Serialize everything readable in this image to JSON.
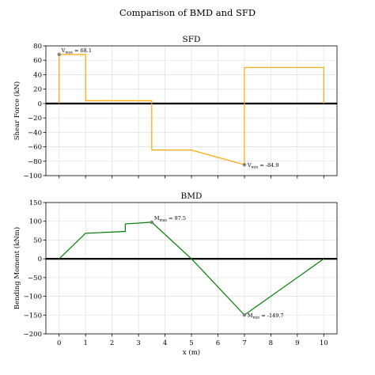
{
  "figure": {
    "suptitle": "Comparison of BMD and SFD"
  },
  "chart_data": [
    {
      "type": "line",
      "title": "SFD",
      "xlabel": "",
      "ylabel": "Shear Force (kN)",
      "xlim": [
        -0.5,
        10.5
      ],
      "ylim": [
        -100,
        80
      ],
      "xticks": [
        0,
        1,
        2,
        3,
        4,
        5,
        6,
        7,
        8,
        9,
        10
      ],
      "yticks": [
        -100,
        -80,
        -60,
        -40,
        -20,
        0,
        20,
        40,
        60,
        80
      ],
      "show_xtick_labels": false,
      "grid": true,
      "line_color": "#FFA500",
      "series": [
        {
          "x": [
            0,
            0,
            1,
            1,
            3.5,
            3.5,
            5,
            7,
            7,
            10,
            10
          ],
          "y": [
            0,
            68.1,
            68.1,
            4,
            4,
            -64.5,
            -64.5,
            -84.9,
            50,
            50,
            0
          ]
        }
      ],
      "annotations": [
        {
          "x": 0,
          "y": 68.1,
          "sym": "V",
          "sub": "max",
          "value": "68.1",
          "pos": "above-right"
        },
        {
          "x": 7,
          "y": -84.9,
          "sym": "V",
          "sub": "min",
          "value": "-84.9",
          "pos": "right"
        }
      ]
    },
    {
      "type": "line",
      "title": "BMD",
      "xlabel": "x (m)",
      "ylabel": "Bending Moment (kNm)",
      "xlim": [
        -0.5,
        10.5
      ],
      "ylim": [
        -200,
        150
      ],
      "xticks": [
        0,
        1,
        2,
        3,
        4,
        5,
        6,
        7,
        8,
        9,
        10
      ],
      "yticks": [
        -200,
        -150,
        -100,
        -50,
        0,
        50,
        100,
        150
      ],
      "show_xtick_labels": true,
      "grid": true,
      "line_color": "#008000",
      "series": [
        {
          "x": [
            0,
            1,
            2.5,
            2.5,
            3.5,
            5,
            7,
            10
          ],
          "y": [
            0,
            68.1,
            73,
            93,
            97.5,
            0,
            -149.7,
            0
          ]
        }
      ],
      "annotations": [
        {
          "x": 3.5,
          "y": 97.5,
          "sym": "M",
          "sub": "max",
          "value": "97.5",
          "pos": "above-right"
        },
        {
          "x": 7,
          "y": -149.7,
          "sym": "M",
          "sub": "min",
          "value": "-149.7",
          "pos": "right"
        }
      ]
    }
  ]
}
